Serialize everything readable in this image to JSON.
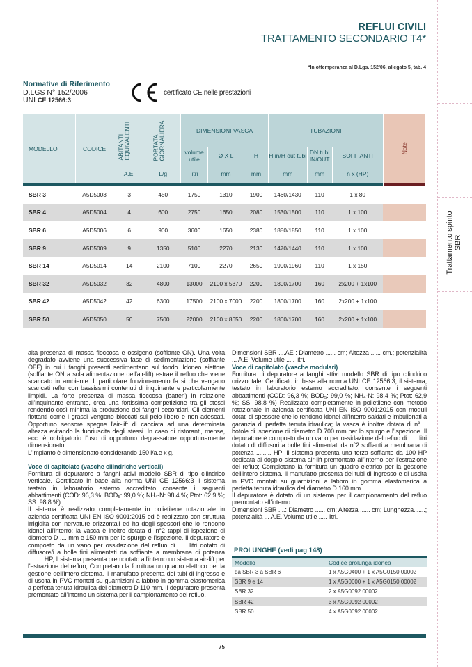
{
  "header": {
    "category": "REFLUI CIVILI",
    "subtitle": "TRATTAMENTO SECONDARIO T4*",
    "footnote": "*In ottemperanza al D.Lgs. 152/06, allegato 5, tab. 4"
  },
  "normative": {
    "heading": "Normative di Riferimento",
    "line1": "D.LGS N° 152/2006",
    "line2_prefix": "UNI",
    "line2_bold": "CE 12566:3",
    "ce_mark": "CE",
    "ce_text": "certificato CE nelle prestazioni"
  },
  "side_tab": {
    "line1": "Trattamento spinto",
    "line2": "SBR"
  },
  "table": {
    "headers": {
      "modello": "MODELLO",
      "codice": "CODICE",
      "abitanti": "ABITANTI EQUIVALENTI",
      "portata": "PORTATA GIORNALIERA",
      "dim": "DIMENSIONI VASCA",
      "tub": "TUBAZIONI",
      "note": "Note",
      "volume": "volume utile",
      "oxl": "Ø X L",
      "h": "H",
      "hin": "H in/H out tubi",
      "dn": "DN tubi IN/OUT",
      "soff": "SOFFIANTI"
    },
    "units": [
      "A.E.",
      "L/g",
      "litri",
      "mm",
      "mm",
      "mm",
      "mm",
      "n x (HP)"
    ],
    "rows": [
      [
        "SBR 3",
        "A5D5003",
        "3",
        "450",
        "1750",
        "1310",
        "1900",
        "1460/1430",
        "110",
        "1 x 80"
      ],
      [
        "SBR 4",
        "A5D5004",
        "4",
        "600",
        "2750",
        "1650",
        "2080",
        "1530/1500",
        "110",
        "1 x 100"
      ],
      [
        "SBR 6",
        "A5D5006",
        "6",
        "900",
        "3600",
        "1650",
        "2380",
        "1880/1850",
        "110",
        "1 x 100"
      ],
      [
        "SBR 9",
        "A5D5009",
        "9",
        "1350",
        "5100",
        "2270",
        "2130",
        "1470/1440",
        "110",
        "1 x 100"
      ],
      [
        "SBR 14",
        "A5D5014",
        "14",
        "2100",
        "7100",
        "2270",
        "2650",
        "1990/1960",
        "110",
        "1 x 150"
      ],
      [
        "SBR 32",
        "A5D5032",
        "32",
        "4800",
        "13000",
        "2100 x 5370",
        "2200",
        "1800/1700",
        "160",
        "2x200 + 1x100"
      ],
      [
        "SBR 42",
        "A5D5042",
        "42",
        "6300",
        "17500",
        "2100 x 7000",
        "2200",
        "1800/1700",
        "160",
        "2x200 + 1x100"
      ],
      [
        "SBR 50",
        "A5D5050",
        "50",
        "7500",
        "22000",
        "2100 x 8650",
        "2200",
        "1800/1700",
        "160",
        "2x200 + 1x100"
      ]
    ]
  },
  "left_col": {
    "p1": "alta presenza di massa fioccosa e ossigeno (soffiante ON). Una volta degradato avviene una successiva fase di sedimentazione (soffiante OFF) in cui i fanghi presenti sedimentano sul fondo. Idoneo eiettore (soffiante ON a sola alimentazione dell'air-lift) estrae il refluo che viene scaricato in ambiente. Il particolare funzionamento fa si che vengano scaricati reflui con bassissimi contenuti di inquinante e particolarmente limpidi. La forte presenza di massa fioccosa (batteri) in relazione all'inquinante entrante, crea una fortissima competizione tra gli stessi rendendo così minima la produzione dei fanghi secondari. Gli elementi flottanti come i grassi vengono bloccati sul pelo libero e non adescati. Opportuno sensore spegne l'air-lift di cacciata ad una determinata altezza evitando la fuoriuscita degli stessi. In caso di ristoranti, mense, ecc. è obbligatorio l'uso di opportuno degrassatore opportunamente dimensionato.",
    "p2": "L'impianto è dimensionato considerando 150 l/a.e x g.",
    "heading": "Voce di capitolato (vasche cilindriche verticali)",
    "p3": "Fornitura di depuratore a fanghi attivi modello SBR di tipo cilindrico verticale. Certificato in base alla norma UNI CE 12566:3 Il sistema testato in laboratorio esterno accreditato consente i seguenti abbattimenti (COD: 96,3 %; BOD₅: 99,0 %; NH₄-N: 98,4 %; Ptot: 62,9 %; SS: 98,8 %)",
    "p4": "Il sistema è realizzato completamente in polietilene rotazionale in azienda certificata UNI EN ISO 9001:2015 ed è realizzato con struttura irrigidita con nervature orizzontali ed ha degli spessori che lo rendono idonei all'interro; la vasca è inoltre dotata di n°2 tappi di ispezione di diametro D .... mm e 150 mm per lo spurgo e l'ispezione. Il depuratore è composto da un vano per ossidazione del refluo di ..... litri dotato di diffusore/i a bolle fini alimentati da soffiante a membrana di potenza ......... HP, Il sistema presenta premontato all'interno un sistema air-lift per l'estrazione del refluo; Completano la fornitura un quadro elettrico per la gestione dell'intero sistema. Il manufatto presenta dei tubi di ingresso e di uscita in PVC montati su guarnizioni a labbro in gomma elastomerica a perfetta tenuta idraulica del diametro D 110 mm. Il depuratore presenta premontato all'interno un sistema per il campionamento del refluo."
  },
  "right_col": {
    "p1": "Dimensioni SBR ....AE : Diametro ...... cm; Altezza ...... cm.; potenzialità ... A.E. Volume utile ..... litri.",
    "heading": "Voce di capitolato (vasche modulari)",
    "p2": "Fornitura di depuratore a fanghi attivi modello SBR di tipo cilindrico orizzontale. Certificato in base alla norma UNI CE 12566:3; il sistema, testato in laboratorio esterno accreditato, consente i seguenti abbattimenti (COD: 96,3 %; BOD₅: 99,0 %; NH₄-N: 98,4 %; Ptot: 62,9 %; SS: 98,8 %) Realizzato completamente in polietilene con metodo rotazionale in azienda certificata UNI EN ISO 9001:2015 con moduli dotati di spessore che lo rendono idonei all'interro saldati e imbullonati a garanzia di perfetta tenuta idraulica; la vasca è inoltre dotata di n°.... botole di ispezione di diametro D 700 mm per lo spurgo e l'ispezione. Il depuratore è composto da un vano per ossidazione del refluo di ..... litri dotato di diffusori a bolle fini alimentati da n°2 soffianti a membrana di potenza ......... HP; Il sistema presenta una terza soffiante da 100 HP dedicata al doppio sistema air-lift premontato all'interno per l'estrazione del refluo; Completano la fornitura un quadro elettrico per la gestione dell'intero sistema. Il manufatto presenta dei tubi di ingresso e di uscita in PVC montati su guarnizioni a labbro in gomma elastomerica a perfetta tenuta idraulica del diametro D 160 mm.",
    "p3": "Il depuratore è dotato  di un sistema per il campionamento del refluo premontato all'interno.",
    "p4": "Dimensioni SBR ....: Diametro ...... cm; Altezza ...... cm; Lunghezza.......; potenzialità ... A.E. Volume utile ..... litri."
  },
  "prolunghe": {
    "heading": "PROLUNGHE (vedi pag 148)",
    "col1": "Modello",
    "col2": "Codice prolunga idonea",
    "rows": [
      [
        "da SBR 3 a SBR 6",
        "1 x A5G0400 + 1 x A5G0150 00002"
      ],
      [
        "SBR 9 e 14",
        "1 x A5G0600 + 1 x A5G0150 00002"
      ],
      [
        "SBR 32",
        "2 x A5G0092 00002"
      ],
      [
        "SBR 42",
        "3 x A5G0092 00002"
      ],
      [
        "SBR 50",
        "4 x A5G0092 00002"
      ]
    ]
  },
  "footer": {
    "page": "75"
  },
  "colors": {
    "teal": "#1d5861",
    "note": "#e9c6b6"
  }
}
